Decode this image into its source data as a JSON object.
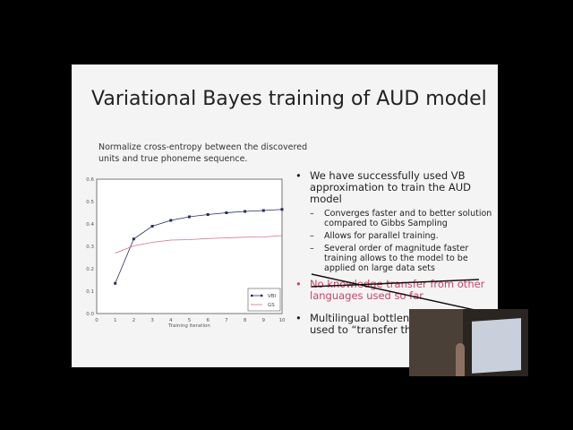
{
  "slide": {
    "title": "Variational Bayes training of AUD model",
    "caption": "Normalize cross-entropy between the discovered units and true phoneme sequence.",
    "bullets": [
      {
        "text": "We have successfully used VB approximation to train the AUD model",
        "sub": [
          "Converges faster and to better solution  compared to Gibbs Sampling",
          "Allows for parallel training.",
          "Several order of magnitude faster training allows to the model to be applied on large data sets"
        ]
      },
      {
        "text": "No knowledge transfer from other languages used so far",
        "struck": true,
        "color": "#d0406a"
      },
      {
        "text": "Multilingual bottlene",
        "text2": "used to “transfer the"
      }
    ]
  },
  "chart_data": {
    "type": "line",
    "xlabel": "Training iteration",
    "ylabel": "",
    "xlim": [
      0,
      10
    ],
    "ylim": [
      0,
      0.6
    ],
    "xticks": [
      "0",
      "1",
      "2",
      "3",
      "4",
      "5",
      "6",
      "7",
      "8",
      "9",
      "10"
    ],
    "yticks": [
      "0.0",
      "0.1",
      "0.2",
      "0.3",
      "0.4",
      "0.5",
      "0.6"
    ],
    "x": [
      1,
      2,
      3,
      4,
      5,
      6,
      7,
      8,
      9,
      10
    ],
    "legend_position": "bottom-right",
    "grid": false,
    "series": [
      {
        "name": "VBI",
        "color": "#2a2a5a",
        "marker": "square",
        "values": [
          0.135,
          0.333,
          0.39,
          0.416,
          0.432,
          0.442,
          0.45,
          0.456,
          0.46,
          0.465
        ]
      },
      {
        "name": "GS",
        "color": "#d07090",
        "marker": "none",
        "values": [
          0.27,
          0.302,
          0.318,
          0.328,
          0.33,
          0.335,
          0.338,
          0.341,
          0.342,
          0.348
        ]
      }
    ]
  }
}
